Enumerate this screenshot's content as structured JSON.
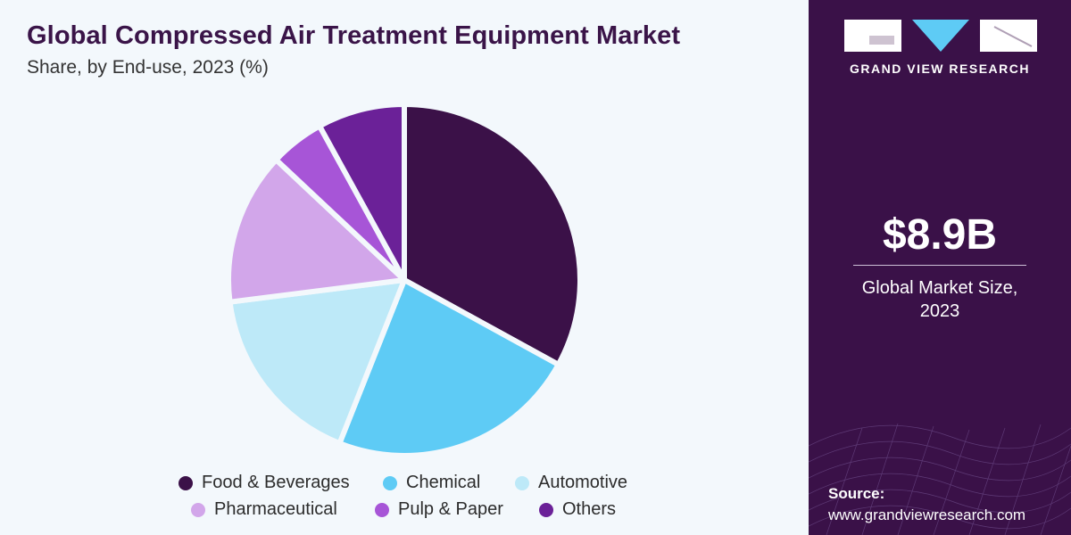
{
  "header": {
    "title": "Global Compressed Air Treatment Equipment Market",
    "subtitle": "Share, by End-use, 2023 (%)"
  },
  "brand": {
    "name": "GRAND VIEW RESEARCH",
    "logo_icon": "gvr-logo-icon"
  },
  "kpi": {
    "value": "$8.9B",
    "label_line1": "Global Market Size,",
    "label_line2": "2023"
  },
  "source": {
    "label": "Source:",
    "url": "www.grandviewresearch.com"
  },
  "colors": {
    "panel_bg": "#3a1148",
    "title": "#3a1448"
  },
  "chart_data": {
    "type": "pie",
    "title": "Global Compressed Air Treatment Equipment Market",
    "subtitle": "Share, by End-use, 2023 (%)",
    "legend_position": "bottom",
    "slices": [
      {
        "name": "Food & Beverages",
        "value": 33,
        "color": "#3b1148"
      },
      {
        "name": "Chemical",
        "value": 23,
        "color": "#5ecbf5"
      },
      {
        "name": "Automotive",
        "value": 17,
        "color": "#bde9f8"
      },
      {
        "name": "Pharmaceutical",
        "value": 14,
        "color": "#d2a6ea"
      },
      {
        "name": "Pulp & Paper",
        "value": 5,
        "color": "#a755d7"
      },
      {
        "name": "Others",
        "value": 8,
        "color": "#6b2198"
      }
    ]
  }
}
